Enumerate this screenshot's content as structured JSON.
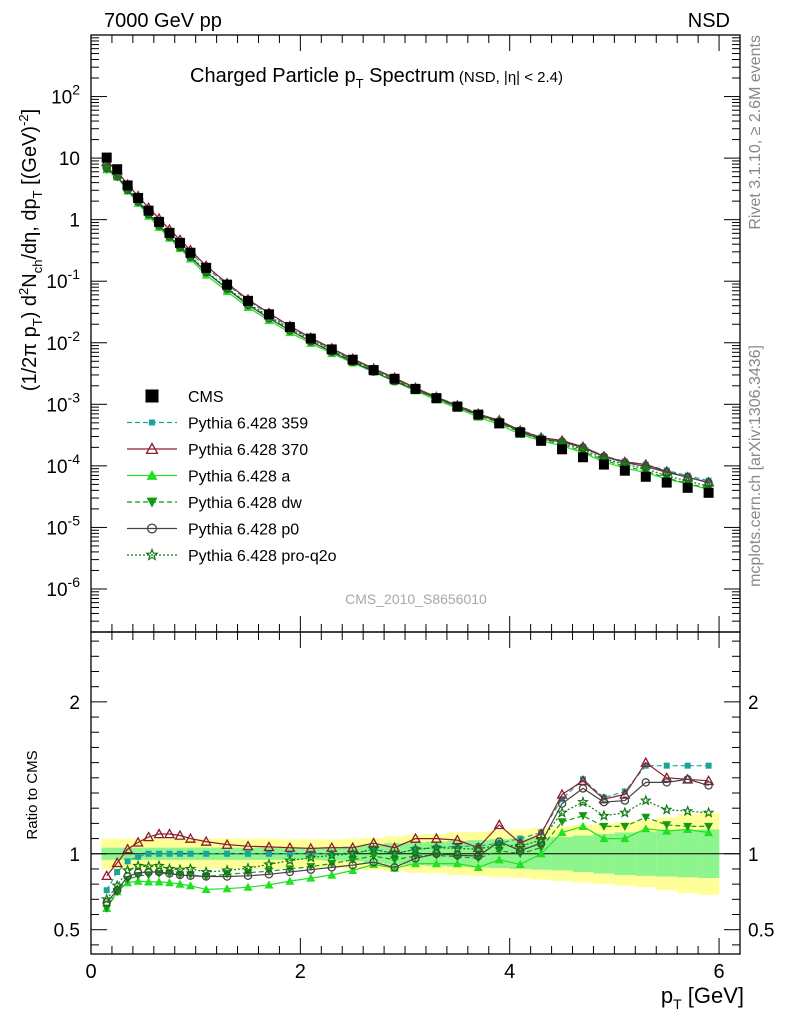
{
  "header": {
    "left": "7000 GeV pp",
    "right": "NSD"
  },
  "side_text": {
    "rivet": "Rivet 3.1.10, ≥ 2.6M events",
    "mcplots": "mcplots.cern.ch [arXiv:1306.3436]"
  },
  "chart_data": [
    {
      "type": "scatter",
      "title": "Charged Particle p_T Spectrum",
      "title_suffix": "(NSD, |η| < 2.4)",
      "xlabel": "p_T [GeV]",
      "ylabel": "(1/2π p_T) d²N_ch/dη, dp_T [(GeV)⁻²]",
      "yscale": "log",
      "xlim": [
        0,
        6.2
      ],
      "ylim": [
        2e-07,
        1000
      ],
      "analysis_label": "CMS_2010_S8656010",
      "legend_position": "left-middle",
      "x": [
        0.15,
        0.25,
        0.35,
        0.45,
        0.55,
        0.65,
        0.75,
        0.85,
        0.95,
        1.1,
        1.3,
        1.5,
        1.7,
        1.9,
        2.1,
        2.3,
        2.5,
        2.7,
        2.9,
        3.1,
        3.3,
        3.5,
        3.7,
        3.9,
        4.1,
        4.3,
        4.5,
        4.7,
        4.9,
        5.1,
        5.3,
        5.5,
        5.7,
        5.9
      ],
      "series": [
        {
          "name": "CMS",
          "color": "#000000",
          "marker": "square-filled",
          "values": [
            10.2,
            6.6,
            3.6,
            2.25,
            1.4,
            0.92,
            0.61,
            0.42,
            0.29,
            0.165,
            0.088,
            0.048,
            0.029,
            0.018,
            0.0117,
            0.0078,
            0.0053,
            0.0036,
            0.0026,
            0.00178,
            0.00126,
            0.00092,
            0.00068,
            0.00049,
            0.00035,
            0.000255,
            0.000186,
            0.000138,
            0.000105,
            8.35e-05,
            6.65e-05,
            5.35e-05,
            4.4e-05,
            3.65e-05
          ]
        },
        {
          "name": "Pythia 6.428 359",
          "color": "#1aa59a",
          "marker": "square-small",
          "dash": "dashed",
          "values": [
            7.75,
            5.79,
            3.42,
            2.2,
            1.4,
            0.92,
            0.61,
            0.42,
            0.29,
            0.165,
            0.088,
            0.048,
            0.029,
            0.018,
            0.0117,
            0.0078,
            0.0053,
            0.0037,
            0.0026,
            0.00183,
            0.00131,
            0.00097,
            0.00071,
            0.000524,
            0.000385,
            0.00029,
            0.000253,
            0.000205,
            0.000144,
            0.000118,
            0.000105,
            8.45e-05,
            6.95e-05,
            5.75e-05
          ]
        },
        {
          "name": "Pythia 6.428 370",
          "color": "#8c1c2c",
          "marker": "triangle-open",
          "dash": "solid",
          "values": [
            8.7,
            6.2,
            3.72,
            2.42,
            1.56,
            1.04,
            0.69,
            0.47,
            0.32,
            0.178,
            0.093,
            0.0505,
            0.0303,
            0.0187,
            0.0121,
            0.0081,
            0.0055,
            0.0038,
            0.0027,
            0.00185,
            0.00131,
            0.00096,
            0.0007,
            0.00055,
            0.000375,
            0.000288,
            0.000258,
            0.000204,
            0.000143,
            0.000116,
            0.000105,
            8.1e-05,
            6.55e-05,
            5.4e-05
          ]
        },
        {
          "name": "Pythia 6.428 a",
          "color": "#22e022",
          "marker": "triangle-filled",
          "dash": "solid",
          "values": [
            6.5,
            4.95,
            2.92,
            1.85,
            1.14,
            0.75,
            0.5,
            0.34,
            0.23,
            0.126,
            0.068,
            0.0375,
            0.023,
            0.0147,
            0.0098,
            0.0067,
            0.0047,
            0.00335,
            0.00235,
            0.00166,
            0.00118,
            0.00086,
            0.00062,
            0.00047,
            0.000325,
            0.000255,
            0.000212,
            0.000163,
            0.000116,
            9.2e-05,
            7.75e-05,
            6.15e-05,
            5.1e-05,
            4.15e-05
          ]
        },
        {
          "name": "Pythia 6.428 dw",
          "color": "#129a12",
          "marker": "triangle-down-filled",
          "dash": "dashed",
          "values": [
            6.55,
            4.95,
            3.0,
            1.92,
            1.2,
            0.8,
            0.53,
            0.36,
            0.25,
            0.14,
            0.076,
            0.042,
            0.0257,
            0.0162,
            0.0107,
            0.0073,
            0.0051,
            0.00355,
            0.0025,
            0.00175,
            0.00125,
            0.0009,
            0.00066,
            0.0005,
            0.00035,
            0.000265,
            0.000225,
            0.000172,
            0.000124,
            9.85e-05,
            8.25e-05,
            6.35e-05,
            5.2e-05,
            4.3e-05
          ]
        },
        {
          "name": "Pythia 6.428 p0",
          "color": "#444444",
          "marker": "circle-open",
          "dash": "solid",
          "values": [
            6.9,
            5.0,
            3.05,
            1.97,
            1.23,
            0.81,
            0.53,
            0.36,
            0.248,
            0.14,
            0.075,
            0.041,
            0.025,
            0.0159,
            0.0105,
            0.0071,
            0.0049,
            0.0034,
            0.00237,
            0.00173,
            0.00126,
            0.00091,
            0.00067,
            0.00053,
            0.000358,
            0.000272,
            0.000247,
            0.000197,
            0.000141,
            0.000113,
            9.75e-05,
            7.85e-05,
            6.55e-05,
            5.3e-05
          ]
        },
        {
          "name": "Pythia 6.428 pro-q2o",
          "color": "#127812",
          "marker": "star-open",
          "dash": "dotted",
          "values": [
            7.1,
            5.2,
            3.2,
            2.07,
            1.28,
            0.85,
            0.55,
            0.375,
            0.26,
            0.145,
            0.078,
            0.0435,
            0.027,
            0.0172,
            0.0114,
            0.0077,
            0.0053,
            0.0037,
            0.0026,
            0.00183,
            0.00131,
            0.00095,
            0.0007,
            0.00052,
            0.00037,
            0.000277,
            0.000237,
            0.000185,
            0.000131,
            0.000106,
            8.95e-05,
            6.9e-05,
            5.65e-05,
            4.65e-05
          ]
        }
      ]
    },
    {
      "type": "line",
      "ylabel": "Ratio to CMS",
      "xlabel": "p_T [GeV]",
      "xlim": [
        0,
        6.2
      ],
      "ylim": [
        0.34,
        2.46
      ],
      "yticks": [
        "0.5",
        "1",
        "2"
      ],
      "xticks": [
        "0",
        "2",
        "4",
        "6"
      ],
      "x": [
        0.15,
        0.25,
        0.35,
        0.45,
        0.55,
        0.65,
        0.75,
        0.85,
        0.95,
        1.1,
        1.3,
        1.5,
        1.7,
        1.9,
        2.1,
        2.3,
        2.5,
        2.7,
        2.9,
        3.1,
        3.3,
        3.5,
        3.7,
        3.9,
        4.1,
        4.3,
        4.5,
        4.7,
        4.9,
        5.1,
        5.3,
        5.5,
        5.7,
        5.9
      ],
      "x_edges": [
        0.1,
        0.2,
        0.3,
        0.4,
        0.5,
        0.6,
        0.7,
        0.8,
        0.9,
        1.0,
        1.2,
        1.4,
        1.6,
        1.8,
        2.0,
        2.2,
        2.4,
        2.6,
        2.8,
        3.0,
        3.2,
        3.4,
        3.6,
        3.8,
        4.0,
        4.2,
        4.4,
        4.6,
        4.8,
        5.0,
        5.2,
        5.4,
        5.6,
        5.8,
        6.0
      ],
      "band_inner_lo": [
        0.96,
        0.96,
        0.96,
        0.96,
        0.96,
        0.96,
        0.96,
        0.96,
        0.96,
        0.96,
        0.96,
        0.96,
        0.96,
        0.96,
        0.96,
        0.955,
        0.95,
        0.94,
        0.93,
        0.925,
        0.92,
        0.915,
        0.91,
        0.905,
        0.9,
        0.895,
        0.89,
        0.88,
        0.87,
        0.86,
        0.855,
        0.85,
        0.845,
        0.84
      ],
      "band_inner_hi": [
        1.04,
        1.04,
        1.04,
        1.04,
        1.04,
        1.04,
        1.04,
        1.04,
        1.04,
        1.04,
        1.04,
        1.04,
        1.04,
        1.04,
        1.04,
        1.045,
        1.05,
        1.06,
        1.07,
        1.075,
        1.08,
        1.085,
        1.09,
        1.095,
        1.1,
        1.105,
        1.11,
        1.12,
        1.13,
        1.14,
        1.145,
        1.15,
        1.155,
        1.16
      ],
      "band_outer_lo": [
        0.9,
        0.9,
        0.9,
        0.9,
        0.9,
        0.9,
        0.9,
        0.9,
        0.9,
        0.9,
        0.9,
        0.9,
        0.9,
        0.905,
        0.905,
        0.905,
        0.9,
        0.895,
        0.885,
        0.875,
        0.87,
        0.86,
        0.855,
        0.845,
        0.84,
        0.83,
        0.82,
        0.81,
        0.8,
        0.79,
        0.78,
        0.76,
        0.74,
        0.73
      ],
      "band_outer_hi": [
        1.1,
        1.1,
        1.1,
        1.1,
        1.1,
        1.1,
        1.1,
        1.1,
        1.1,
        1.1,
        1.1,
        1.1,
        1.1,
        1.095,
        1.095,
        1.095,
        1.1,
        1.105,
        1.115,
        1.125,
        1.13,
        1.14,
        1.145,
        1.155,
        1.16,
        1.17,
        1.18,
        1.19,
        1.2,
        1.21,
        1.22,
        1.24,
        1.26,
        1.27
      ],
      "series": [
        {
          "name": "Pythia 6.428 359",
          "color": "#1aa59a",
          "marker": "square-small",
          "dash": "dashed",
          "values": [
            0.76,
            0.88,
            0.95,
            0.98,
            1.0,
            1.0,
            1.0,
            1.0,
            1.0,
            1.0,
            1.0,
            1.0,
            1.0,
            1.0,
            1.0,
            1.0,
            1.0,
            1.03,
            1.0,
            1.03,
            1.04,
            1.05,
            1.05,
            1.07,
            1.1,
            1.14,
            1.36,
            1.49,
            1.37,
            1.41,
            1.58,
            1.58,
            1.58,
            1.58
          ]
        },
        {
          "name": "Pythia 6.428 370",
          "color": "#8c1c2c",
          "marker": "triangle-open",
          "dash": "solid",
          "values": [
            0.855,
            0.94,
            1.03,
            1.075,
            1.11,
            1.13,
            1.13,
            1.12,
            1.1,
            1.08,
            1.06,
            1.05,
            1.045,
            1.04,
            1.035,
            1.04,
            1.04,
            1.07,
            1.04,
            1.1,
            1.1,
            1.09,
            1.04,
            1.19,
            1.07,
            1.13,
            1.39,
            1.48,
            1.36,
            1.39,
            1.6,
            1.5,
            1.49,
            1.48
          ]
        },
        {
          "name": "Pythia 6.428 a",
          "color": "#22e022",
          "marker": "triangle-filled",
          "dash": "solid",
          "values": [
            0.64,
            0.75,
            0.81,
            0.82,
            0.815,
            0.815,
            0.81,
            0.8,
            0.79,
            0.765,
            0.77,
            0.78,
            0.795,
            0.82,
            0.84,
            0.86,
            0.89,
            0.93,
            0.905,
            0.935,
            0.935,
            0.935,
            0.91,
            0.96,
            0.93,
            1.0,
            1.14,
            1.18,
            1.1,
            1.1,
            1.165,
            1.15,
            1.16,
            1.14
          ]
        },
        {
          "name": "Pythia 6.428 dw",
          "color": "#129a12",
          "marker": "triangle-down-filled",
          "dash": "dashed",
          "values": [
            0.64,
            0.75,
            0.83,
            0.855,
            0.86,
            0.87,
            0.87,
            0.86,
            0.86,
            0.85,
            0.865,
            0.875,
            0.885,
            0.9,
            0.915,
            0.935,
            0.96,
            0.985,
            0.96,
            0.985,
            0.99,
            0.98,
            0.97,
            1.02,
            1.0,
            1.04,
            1.21,
            1.25,
            1.18,
            1.18,
            1.24,
            1.19,
            1.18,
            1.18
          ]
        },
        {
          "name": "Pythia 6.428 p0",
          "color": "#444444",
          "marker": "circle-open",
          "dash": "solid",
          "values": [
            0.68,
            0.76,
            0.85,
            0.875,
            0.88,
            0.88,
            0.87,
            0.86,
            0.855,
            0.85,
            0.85,
            0.855,
            0.865,
            0.88,
            0.895,
            0.91,
            0.925,
            0.945,
            0.91,
            0.97,
            1.0,
            0.99,
            0.985,
            1.08,
            1.02,
            1.07,
            1.33,
            1.43,
            1.34,
            1.35,
            1.47,
            1.47,
            1.49,
            1.45
          ]
        },
        {
          "name": "Pythia 6.428 pro-q2o",
          "color": "#127812",
          "marker": "star-open",
          "dash": "dotted",
          "values": [
            0.7,
            0.79,
            0.89,
            0.92,
            0.915,
            0.92,
            0.9,
            0.895,
            0.9,
            0.88,
            0.89,
            0.905,
            0.93,
            0.955,
            0.975,
            0.99,
            1.0,
            1.03,
            1.0,
            1.03,
            1.04,
            1.035,
            1.03,
            1.06,
            1.05,
            1.09,
            1.27,
            1.34,
            1.25,
            1.27,
            1.35,
            1.29,
            1.28,
            1.27
          ]
        }
      ]
    }
  ]
}
